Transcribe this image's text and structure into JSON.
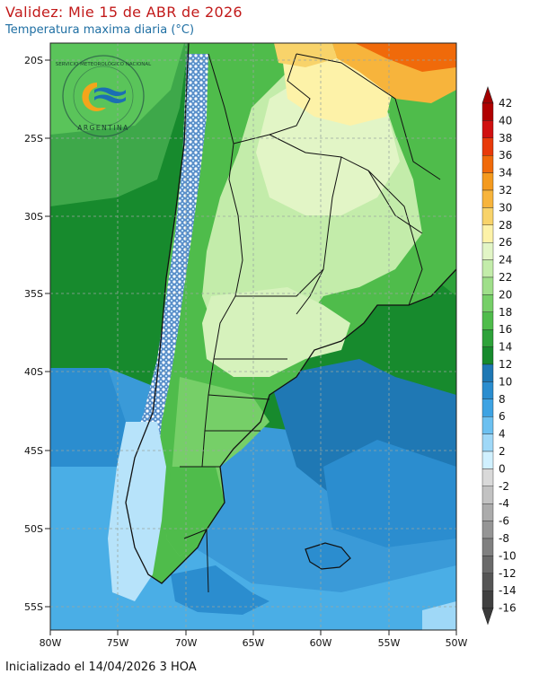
{
  "header": {
    "title": "Validez: Mie 15 de ABR de 2026",
    "subtitle": "Temperatura maxima diaria (°C)"
  },
  "footer": {
    "text": "Inicializado el 14/04/2026 3 HOA"
  },
  "logo": {
    "agency": "SERVICIO METEOROLÓGICO NACIONAL",
    "country": "ARGENTINA",
    "icon": "smn-logo"
  },
  "map": {
    "lat_labels": [
      "20S",
      "25S",
      "30S",
      "35S",
      "40S",
      "45S",
      "50S",
      "55S"
    ],
    "lon_labels": [
      "80W",
      "75W",
      "70W",
      "65W",
      "60W",
      "55W",
      "50W"
    ]
  },
  "colorbar": {
    "labels": [
      "42",
      "40",
      "38",
      "36",
      "34",
      "32",
      "30",
      "28",
      "26",
      "24",
      "22",
      "20",
      "18",
      "16",
      "14",
      "12",
      "10",
      "8",
      "6",
      "4",
      "2",
      "0",
      "-2",
      "-4",
      "-6",
      "-8",
      "-10",
      "-12",
      "-14",
      "-16"
    ],
    "colors": [
      "#b00000",
      "#d01010",
      "#e83a0a",
      "#f06a0a",
      "#f49a1e",
      "#f7b43c",
      "#f8d36a",
      "#fdf2a8",
      "#e2f5c6",
      "#c3ecaa",
      "#9fdf8a",
      "#76cf68",
      "#4fbc4b",
      "#2ea23a",
      "#178a2d",
      "#1f78b4",
      "#2b8dcf",
      "#3ea3e3",
      "#6cc0f0",
      "#9fd8f7",
      "#d0f0ff",
      "#d9d9d9",
      "#c2c2c2",
      "#ababab",
      "#959595",
      "#808080",
      "#6a6a6a",
      "#555555",
      "#404040"
    ],
    "top_arrow_color": "#a30000",
    "bottom_arrow_color": "#3a3a3a"
  }
}
